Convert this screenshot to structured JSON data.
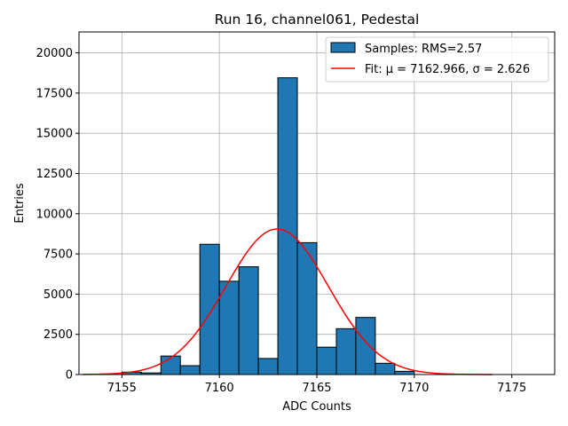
{
  "chart_data": {
    "type": "bar",
    "title": "Run 16, channel061, Pedestal",
    "xlabel": "ADC Counts",
    "ylabel": "Entries",
    "xlim": [
      7152.8,
      7177.2
    ],
    "ylim": [
      0,
      21300
    ],
    "grid": true,
    "legend_placement": "top-right",
    "x_ticks": [
      7155,
      7160,
      7165,
      7170,
      7175
    ],
    "y_ticks": [
      0,
      2500,
      5000,
      7500,
      10000,
      12500,
      15000,
      17500,
      20000
    ],
    "x_tick_labels": [
      "7155",
      "7160",
      "7165",
      "7170",
      "7175"
    ],
    "y_tick_labels": [
      "0",
      "2500",
      "5000",
      "7500",
      "10000",
      "12500",
      "15000",
      "17500",
      "20000"
    ],
    "histogram": {
      "bin_edges": [
        7155,
        7156,
        7157,
        7158,
        7159,
        7160,
        7161,
        7162,
        7163,
        7164,
        7165,
        7166,
        7167,
        7168,
        7169,
        7170
      ],
      "counts": [
        150,
        100,
        1150,
        550,
        8100,
        5800,
        6700,
        1000,
        18450,
        8200,
        1700,
        2850,
        3550,
        700,
        200
      ],
      "color": "#1f77b4",
      "edge_color": "#000000"
    },
    "fit": {
      "mu": 7162.966,
      "sigma": 2.626,
      "peak": 9050,
      "x_range": [
        7153,
        7174
      ],
      "color": "#ff0000"
    },
    "legend": [
      {
        "label": "Samples: RMS=2.57",
        "kind": "patch",
        "color": "#1f77b4"
      },
      {
        "label": "Fit: μ = 7162.966, σ = 2.626",
        "kind": "line",
        "color": "#ff0000"
      }
    ]
  }
}
